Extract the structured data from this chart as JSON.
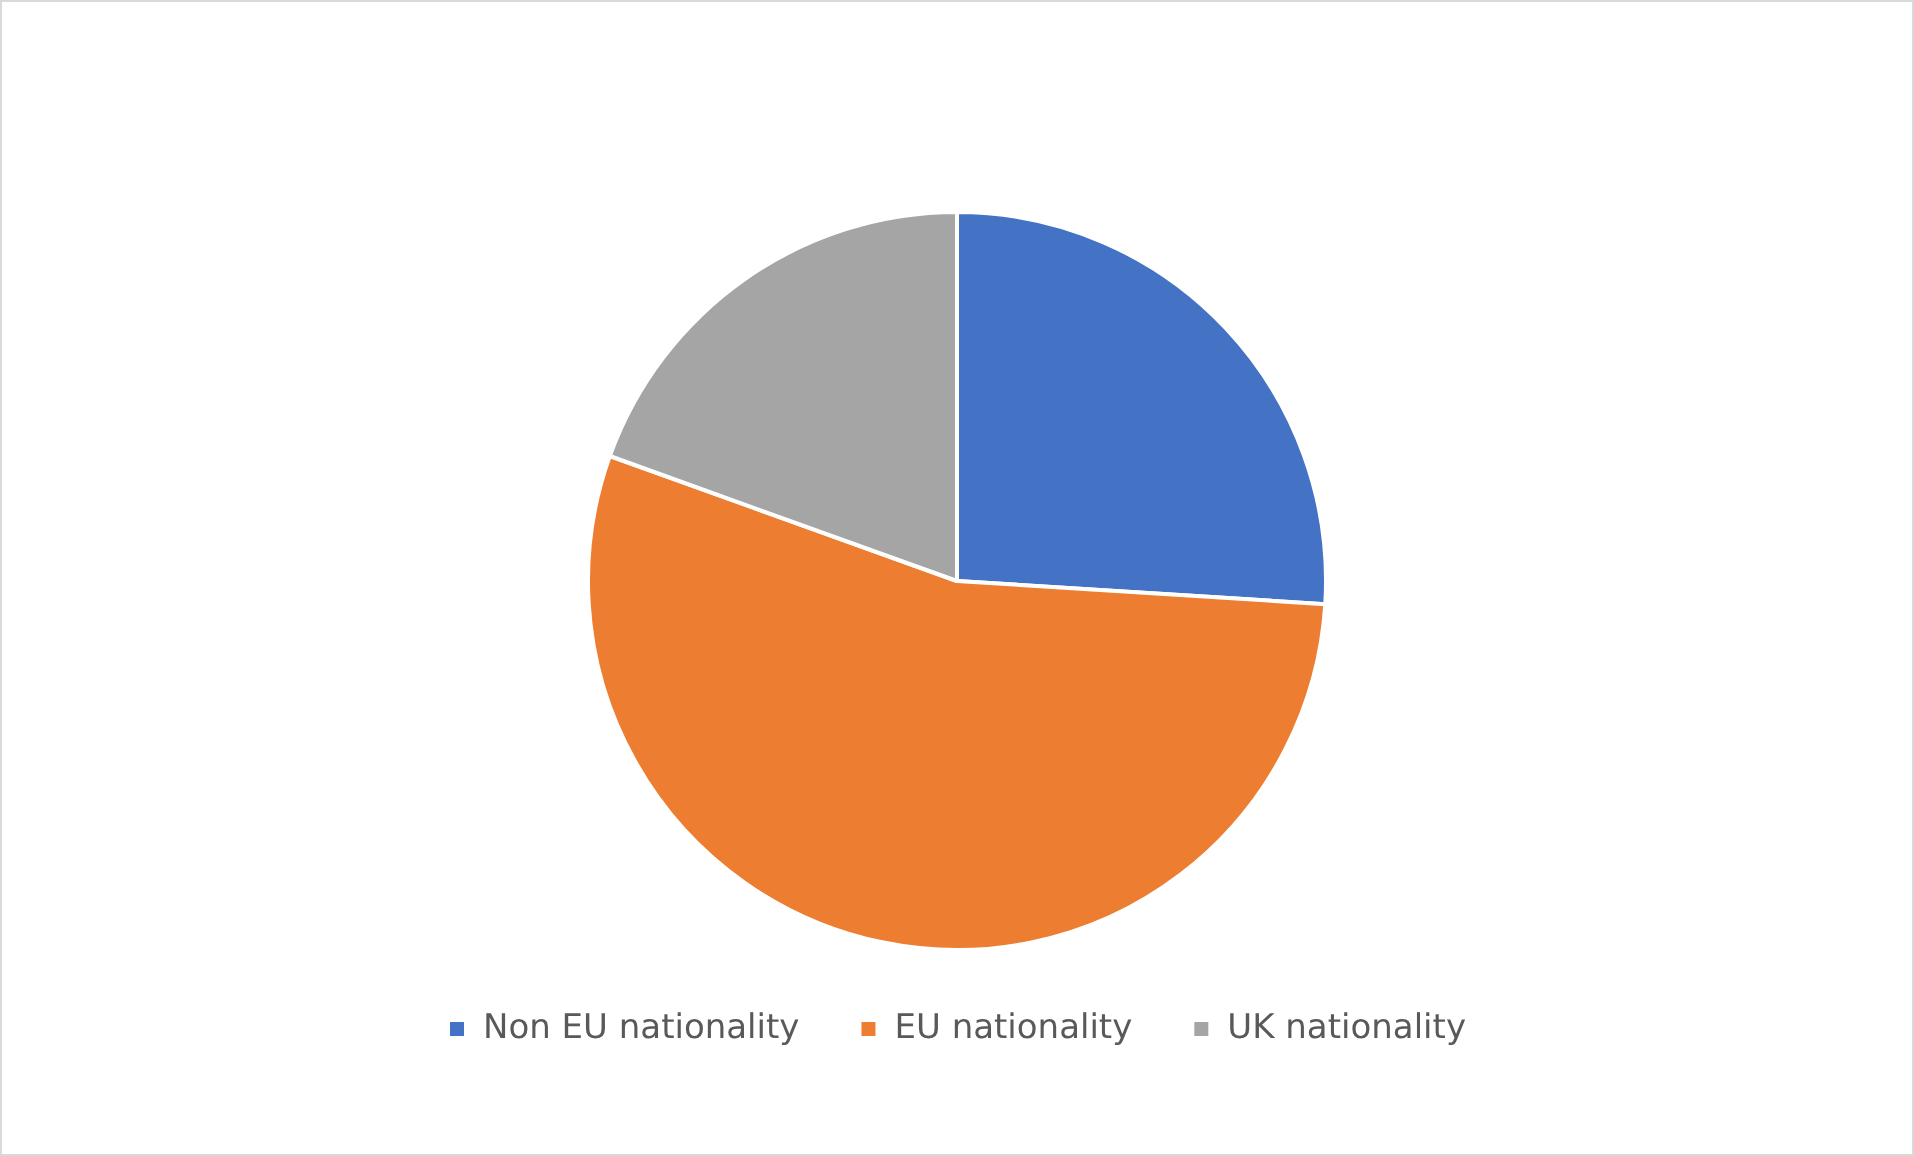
{
  "chart_data": {
    "type": "pie",
    "categories": [
      "Non EU nationality",
      "EU nationality",
      "UK nationality"
    ],
    "values": [
      26,
      54.5,
      19.5
    ],
    "colors": [
      "#4472c4",
      "#ed7d31",
      "#a5a5a5"
    ],
    "legend": "bottom"
  }
}
